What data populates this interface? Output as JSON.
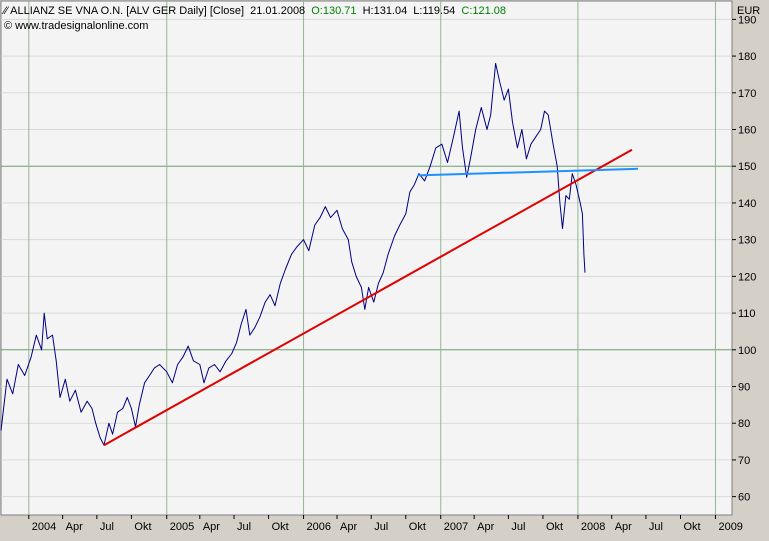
{
  "header": {
    "symbol": "ALLIANZ SE VNA O.N. [ALV GER  Daily] [Close]",
    "date": "21.01.2008",
    "open_label": "O:130.71",
    "high_label": "H:131.04",
    "low_label": "L:119.54",
    "close_label": "C:121.08",
    "copyright": "© www.tradesignalonline.com",
    "open_color": "#008000",
    "close_color": "#008000"
  },
  "chart_data": {
    "type": "line",
    "title": "ALLIANZ SE VNA O.N. [ALV GER  Daily] [Close]",
    "ylabel": "EUR",
    "ylim": [
      55,
      195
    ],
    "y_ticks": [
      60,
      70,
      80,
      90,
      100,
      110,
      120,
      130,
      140,
      150,
      160,
      170,
      180,
      190
    ],
    "y_highlight": [
      100,
      150
    ],
    "xlim": [
      "2003-10-20",
      "2009-02-15"
    ],
    "x_ticks": [
      {
        "label": "2004",
        "date": "2004-01-02",
        "major": true
      },
      {
        "label": "Apr",
        "date": "2004-04-01",
        "major": false
      },
      {
        "label": "Jul",
        "date": "2004-07-01",
        "major": false
      },
      {
        "label": "Okt",
        "date": "2004-10-01",
        "major": false
      },
      {
        "label": "2005",
        "date": "2005-01-03",
        "major": true
      },
      {
        "label": "Apr",
        "date": "2005-04-01",
        "major": false
      },
      {
        "label": "Jul",
        "date": "2005-07-01",
        "major": false
      },
      {
        "label": "Okt",
        "date": "2005-10-01",
        "major": false
      },
      {
        "label": "2006",
        "date": "2006-01-02",
        "major": true
      },
      {
        "label": "Apr",
        "date": "2006-04-01",
        "major": false
      },
      {
        "label": "Jul",
        "date": "2006-07-01",
        "major": false
      },
      {
        "label": "Okt",
        "date": "2006-10-01",
        "major": false
      },
      {
        "label": "2007",
        "date": "2007-01-02",
        "major": true
      },
      {
        "label": "Apr",
        "date": "2007-04-01",
        "major": false
      },
      {
        "label": "Jul",
        "date": "2007-07-01",
        "major": false
      },
      {
        "label": "Okt",
        "date": "2007-10-01",
        "major": false
      },
      {
        "label": "2008",
        "date": "2008-01-02",
        "major": true
      },
      {
        "label": "Apr",
        "date": "2008-04-01",
        "major": false
      },
      {
        "label": "Jul",
        "date": "2008-07-01",
        "major": false
      },
      {
        "label": "Okt",
        "date": "2008-10-01",
        "major": false
      },
      {
        "label": "2009",
        "date": "2009-01-02",
        "major": true
      }
    ],
    "grid": true,
    "series": [
      {
        "role": "price",
        "color": "#000080",
        "points": [
          [
            "2003-10-20",
            78
          ],
          [
            "2003-11-05",
            92
          ],
          [
            "2003-11-20",
            88
          ],
          [
            "2003-12-05",
            96
          ],
          [
            "2003-12-22",
            93
          ],
          [
            "2004-01-08",
            98
          ],
          [
            "2004-01-22",
            104
          ],
          [
            "2004-02-05",
            100
          ],
          [
            "2004-02-12",
            110
          ],
          [
            "2004-02-20",
            103
          ],
          [
            "2004-03-05",
            104
          ],
          [
            "2004-03-15",
            97
          ],
          [
            "2004-03-25",
            87
          ],
          [
            "2004-04-08",
            92
          ],
          [
            "2004-04-20",
            86
          ],
          [
            "2004-05-05",
            89
          ],
          [
            "2004-05-20",
            83
          ],
          [
            "2004-06-05",
            86
          ],
          [
            "2004-06-18",
            84
          ],
          [
            "2004-06-28",
            80
          ],
          [
            "2004-07-10",
            76
          ],
          [
            "2004-07-20",
            74
          ],
          [
            "2004-08-02",
            80
          ],
          [
            "2004-08-12",
            77
          ],
          [
            "2004-08-25",
            83
          ],
          [
            "2004-09-08",
            84
          ],
          [
            "2004-09-20",
            87
          ],
          [
            "2004-10-01",
            84
          ],
          [
            "2004-10-12",
            79
          ],
          [
            "2004-10-22",
            85
          ],
          [
            "2004-11-05",
            91
          ],
          [
            "2004-11-18",
            93
          ],
          [
            "2004-12-01",
            95
          ],
          [
            "2004-12-15",
            96
          ],
          [
            "2005-01-03",
            94
          ],
          [
            "2005-01-18",
            91
          ],
          [
            "2005-02-01",
            96
          ],
          [
            "2005-02-15",
            98
          ],
          [
            "2005-03-01",
            101
          ],
          [
            "2005-03-15",
            97
          ],
          [
            "2005-04-01",
            96
          ],
          [
            "2005-04-12",
            91
          ],
          [
            "2005-04-25",
            95
          ],
          [
            "2005-05-10",
            96
          ],
          [
            "2005-05-25",
            94
          ],
          [
            "2005-06-10",
            97
          ],
          [
            "2005-06-25",
            99
          ],
          [
            "2005-07-08",
            102
          ],
          [
            "2005-07-20",
            107
          ],
          [
            "2005-08-02",
            111
          ],
          [
            "2005-08-12",
            104
          ],
          [
            "2005-08-25",
            106
          ],
          [
            "2005-09-08",
            109
          ],
          [
            "2005-09-22",
            113
          ],
          [
            "2005-10-05",
            115
          ],
          [
            "2005-10-18",
            112
          ],
          [
            "2005-11-01",
            118
          ],
          [
            "2005-11-15",
            122
          ],
          [
            "2005-12-01",
            126
          ],
          [
            "2005-12-15",
            128
          ],
          [
            "2006-01-02",
            130
          ],
          [
            "2006-01-16",
            127
          ],
          [
            "2006-02-01",
            134
          ],
          [
            "2006-02-15",
            136
          ],
          [
            "2006-03-01",
            139
          ],
          [
            "2006-03-15",
            136
          ],
          [
            "2006-04-01",
            138
          ],
          [
            "2006-04-15",
            133
          ],
          [
            "2006-05-01",
            130
          ],
          [
            "2006-05-10",
            124
          ],
          [
            "2006-05-22",
            120
          ],
          [
            "2006-06-05",
            117
          ],
          [
            "2006-06-14",
            111
          ],
          [
            "2006-06-24",
            117
          ],
          [
            "2006-07-08",
            113
          ],
          [
            "2006-07-20",
            118
          ],
          [
            "2006-08-02",
            121
          ],
          [
            "2006-08-15",
            126
          ],
          [
            "2006-09-01",
            131
          ],
          [
            "2006-09-15",
            134
          ],
          [
            "2006-10-01",
            137
          ],
          [
            "2006-10-12",
            143
          ],
          [
            "2006-10-24",
            145
          ],
          [
            "2006-11-05",
            148
          ],
          [
            "2006-11-20",
            146
          ],
          [
            "2006-12-05",
            150
          ],
          [
            "2006-12-20",
            155
          ],
          [
            "2007-01-05",
            156
          ],
          [
            "2007-01-20",
            151
          ],
          [
            "2007-02-05",
            158
          ],
          [
            "2007-02-20",
            165
          ],
          [
            "2007-03-01",
            155
          ],
          [
            "2007-03-12",
            147
          ],
          [
            "2007-03-22",
            152
          ],
          [
            "2007-04-05",
            160
          ],
          [
            "2007-04-20",
            166
          ],
          [
            "2007-05-05",
            160
          ],
          [
            "2007-05-15",
            164
          ],
          [
            "2007-05-28",
            178
          ],
          [
            "2007-06-08",
            173
          ],
          [
            "2007-06-20",
            168
          ],
          [
            "2007-07-01",
            171
          ],
          [
            "2007-07-12",
            162
          ],
          [
            "2007-07-25",
            155
          ],
          [
            "2007-08-06",
            160
          ],
          [
            "2007-08-18",
            152
          ],
          [
            "2007-08-30",
            156
          ],
          [
            "2007-09-12",
            158
          ],
          [
            "2007-09-25",
            160
          ],
          [
            "2007-10-05",
            165
          ],
          [
            "2007-10-15",
            164
          ],
          [
            "2007-10-28",
            156
          ],
          [
            "2007-11-08",
            150
          ],
          [
            "2007-11-15",
            140
          ],
          [
            "2007-11-22",
            133
          ],
          [
            "2007-12-01",
            142
          ],
          [
            "2007-12-10",
            141
          ],
          [
            "2007-12-18",
            148
          ],
          [
            "2007-12-28",
            145
          ],
          [
            "2008-01-08",
            140
          ],
          [
            "2008-01-14",
            137
          ],
          [
            "2008-01-18",
            126
          ],
          [
            "2008-01-21",
            121
          ]
        ]
      },
      {
        "role": "support-trendline",
        "color": "#e00000",
        "points": [
          [
            "2004-07-20",
            74
          ],
          [
            "2008-05-25",
            154.5
          ]
        ]
      },
      {
        "role": "resistance-line",
        "color": "#1e90ff",
        "points": [
          [
            "2006-11-01",
            147.5
          ],
          [
            "2008-06-10",
            149.3
          ]
        ]
      }
    ]
  }
}
